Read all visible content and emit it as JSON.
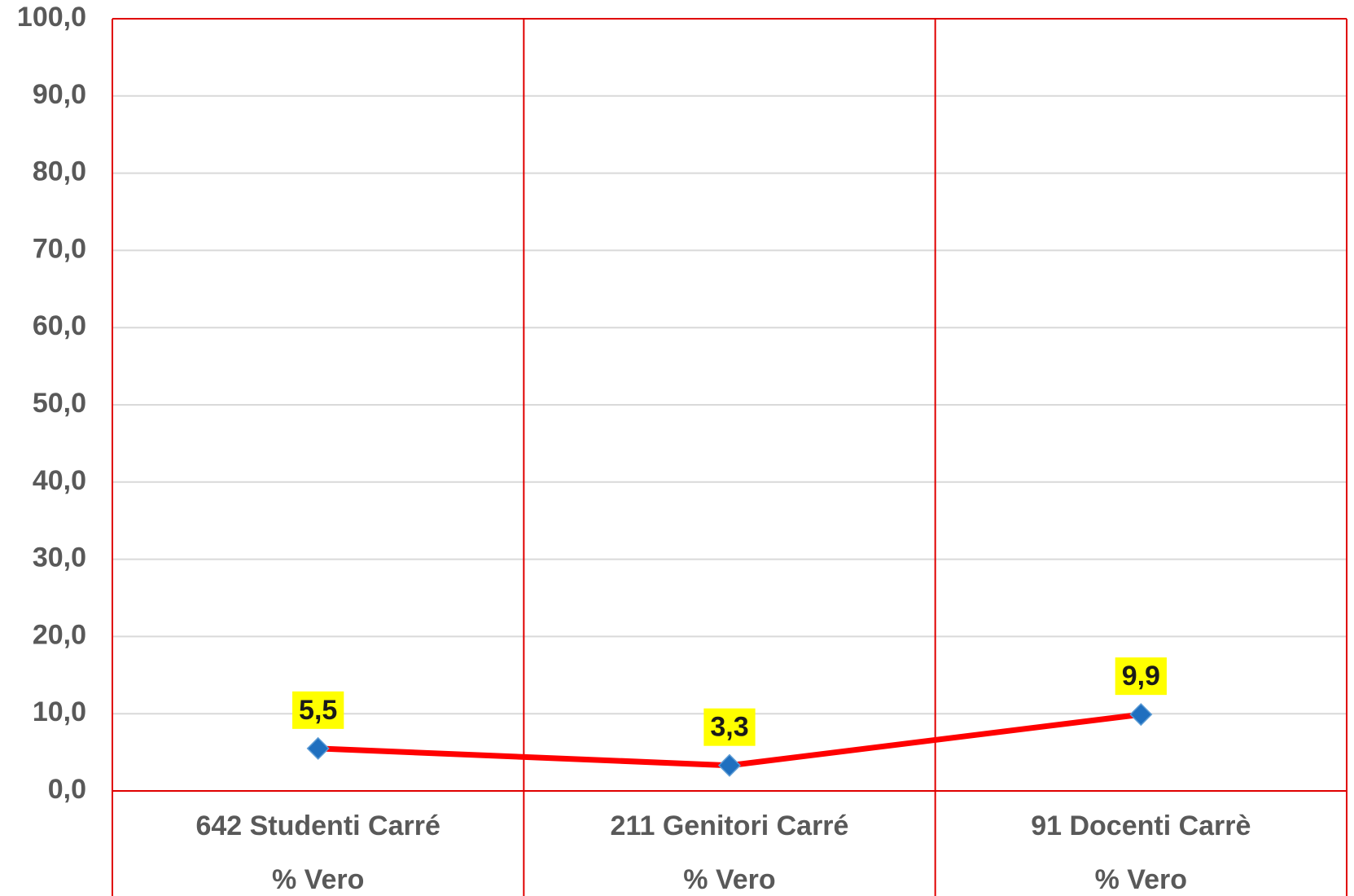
{
  "chart_data": {
    "type": "line",
    "categories": [
      [
        "642 Studenti Carré",
        "% Vero"
      ],
      [
        "211 Genitori Carré",
        "% Vero"
      ],
      [
        "91 Docenti Carrè",
        "% Vero"
      ]
    ],
    "series": [
      {
        "color": "#ff0000",
        "marker_color": "#1f6fbf",
        "values": [
          5.5,
          3.3,
          9.9
        ],
        "value_labels": [
          "5,5",
          "3,3",
          "9,9"
        ]
      }
    ],
    "ylim": [
      0,
      100
    ],
    "yticks": [
      {
        "value": 0,
        "label": "0,0"
      },
      {
        "value": 10,
        "label": "10,0"
      },
      {
        "value": 20,
        "label": "20,0"
      },
      {
        "value": 30,
        "label": "30,0"
      },
      {
        "value": 40,
        "label": "40,0"
      },
      {
        "value": 50,
        "label": "50,0"
      },
      {
        "value": 60,
        "label": "60,0"
      },
      {
        "value": 70,
        "label": "70,0"
      },
      {
        "value": 80,
        "label": "80,0"
      },
      {
        "value": 90,
        "label": "90,0"
      },
      {
        "value": 100,
        "label": "100,0"
      }
    ],
    "grid": true
  }
}
